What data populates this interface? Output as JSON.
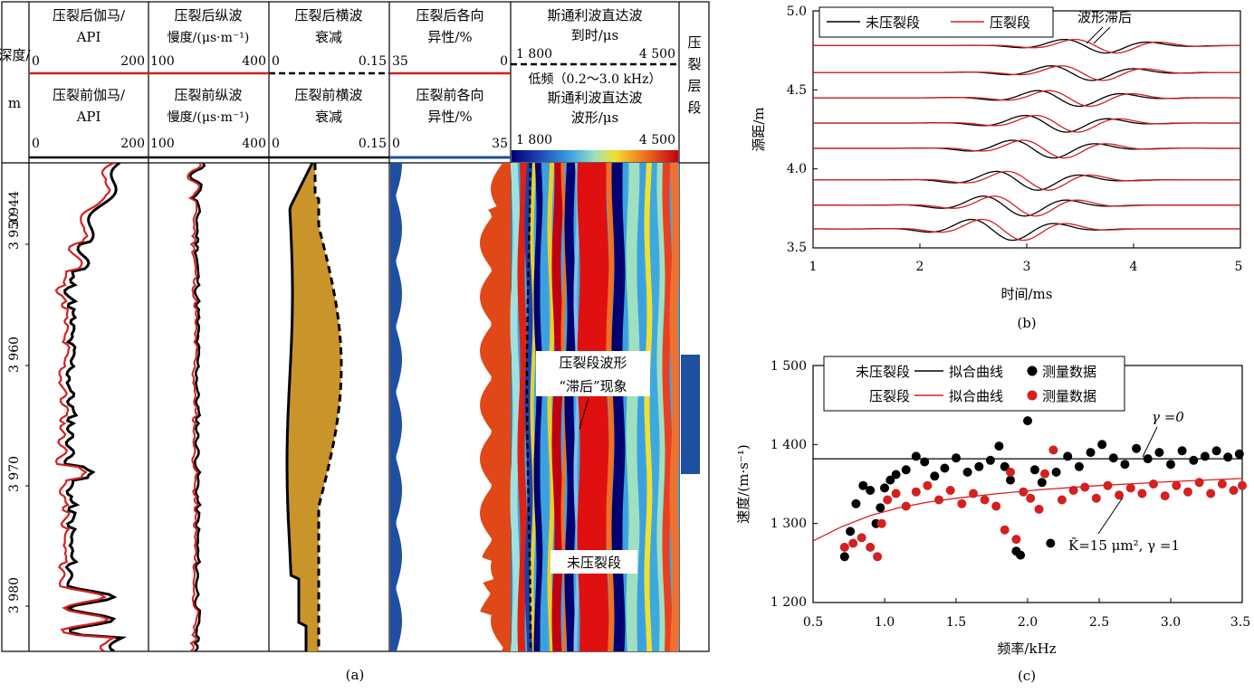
{
  "panel_a": {
    "caption": "(a)",
    "depth_header": [
      "深度/",
      "m"
    ],
    "track1": {
      "after_title": [
        "压裂后伽马/",
        "API"
      ],
      "after_scale": [
        "0",
        "200"
      ],
      "before_title": [
        "压裂前伽马/",
        "API"
      ],
      "before_scale": [
        "0",
        "200"
      ]
    },
    "track2": {
      "after_title": [
        "压裂后纵波",
        "慢度/(μs·m⁻¹)"
      ],
      "after_scale": [
        "100",
        "400"
      ],
      "before_title": [
        "压裂前纵波",
        "慢度/(μs·m⁻¹)"
      ],
      "before_scale": [
        "100",
        "400"
      ]
    },
    "track3": {
      "after_title": [
        "压裂后横波",
        "衰减"
      ],
      "after_scale": [
        "0",
        "0.15"
      ],
      "before_title": [
        "压裂前横波",
        "衰减"
      ],
      "before_scale": [
        "0",
        "0.15"
      ]
    },
    "track4": {
      "after_title": [
        "压裂后各向",
        "异性/%"
      ],
      "after_scale": [
        "35",
        "0"
      ],
      "before_title": [
        "压裂前各向",
        "异性/%"
      ],
      "before_scale": [
        "0",
        "35"
      ]
    },
    "track5": {
      "after_title": [
        "斯通利波直达波",
        "到时/μs"
      ],
      "after_scale": [
        "1 800",
        "4 500"
      ],
      "before_title": [
        "低频（0.2～3.0 kHz）",
        "斯通利波直达波",
        "波形/μs"
      ],
      "before_scale": [
        "1 800",
        "4 500"
      ],
      "annot_frac": [
        "压裂段波形",
        "“滞后”现象"
      ],
      "annot_unfrac": "未压裂段"
    },
    "track6_title": [
      "压",
      "裂",
      "层",
      "段"
    ],
    "depth_ticks": [
      "3 944",
      "3 950",
      "3 960",
      "3 970",
      "3 980"
    ]
  },
  "panel_b": {
    "caption": "(b)",
    "legend": [
      "未压裂段",
      "压裂段"
    ],
    "annotation": "波形滞后",
    "xlabel": "时间/ms",
    "ylabel": "源距/m",
    "x_ticks": [
      "1",
      "2",
      "3",
      "4",
      "5"
    ],
    "y_ticks": [
      "3.5",
      "4.0",
      "4.5",
      "5.0"
    ]
  },
  "panel_c": {
    "caption": "(c)",
    "legend": [
      {
        "name": "未压裂段",
        "line": "拟合曲线",
        "dots": "测量数据"
      },
      {
        "name": "压裂段",
        "line": "拟合曲线",
        "dots": "测量数据"
      }
    ],
    "annot_gamma0": "γ =0",
    "annot_k": "K̄=15 μm², γ =1",
    "xlabel": "频率/kHz",
    "ylabel": "速度/(m·s⁻¹)",
    "x_ticks": [
      "0.5",
      "1.0",
      "1.5",
      "2.0",
      "2.5",
      "3.0",
      "3.5"
    ],
    "y_ticks": [
      "1 200",
      "1 300",
      "1 400",
      "1 500"
    ]
  },
  "colors": {
    "unfractured": "#000000",
    "fractured": "#d42020",
    "fill_attenuation": "#c9952b",
    "anisotropy_before": "#1f4fa0",
    "anisotropy_after": "#e04818",
    "frac_zone": "#1f4fa0"
  },
  "chart_data": [
    {
      "type": "line",
      "title": "",
      "xlabel": "时间/ms",
      "ylabel": "源距/m",
      "xlim": [
        1,
        5
      ],
      "ylim": [
        3.5,
        5.0
      ],
      "offsets_m": [
        3.62,
        3.77,
        3.93,
        4.13,
        4.29,
        4.45,
        4.61,
        4.78
      ],
      "series": [
        {
          "name": "未压裂段",
          "arrival_ms_at_3_62m": 2.75,
          "moveout_ms_per_m": 0.75
        },
        {
          "name": "压裂段",
          "arrival_ms_at_3_62m": 2.85,
          "moveout_ms_per_m": 0.75
        }
      ]
    },
    {
      "type": "scatter",
      "title": "",
      "xlabel": "频率/kHz",
      "ylabel": "速度/(m·s⁻¹)",
      "xlim": [
        0.5,
        3.5
      ],
      "ylim": [
        1200,
        1500
      ],
      "series": [
        {
          "name": "未压裂段 拟合曲线",
          "kind": "line",
          "x": [
            0.5,
            3.5
          ],
          "y": [
            1382,
            1382
          ]
        },
        {
          "name": "压裂段 拟合曲线",
          "kind": "line",
          "x": [
            0.5,
            0.7,
            0.9,
            1.1,
            1.3,
            1.5,
            1.8,
            2.1,
            2.5,
            3.0,
            3.5
          ],
          "y": [
            1278,
            1296,
            1310,
            1320,
            1327,
            1332,
            1338,
            1343,
            1348,
            1353,
            1357
          ]
        },
        {
          "name": "未压裂段 测量数据",
          "kind": "dots",
          "x": [
            0.72,
            0.76,
            0.8,
            0.85,
            0.9,
            0.94,
            0.97,
            1.0,
            1.04,
            1.08,
            1.15,
            1.22,
            1.28,
            1.35,
            1.42,
            1.5,
            1.58,
            1.66,
            1.74,
            1.8,
            1.84,
            1.88,
            1.92,
            1.95,
            2.0,
            2.05,
            2.1,
            2.16,
            2.2,
            2.28,
            2.36,
            2.44,
            2.52,
            2.6,
            2.68,
            2.76,
            2.84,
            2.92,
            3.0,
            3.08,
            3.16,
            3.24,
            3.32,
            3.4,
            3.48
          ],
          "y": [
            1258,
            1290,
            1325,
            1348,
            1342,
            1300,
            1320,
            1345,
            1355,
            1362,
            1368,
            1385,
            1378,
            1360,
            1370,
            1383,
            1365,
            1372,
            1380,
            1398,
            1372,
            1355,
            1265,
            1260,
            1430,
            1368,
            1352,
            1275,
            1365,
            1385,
            1372,
            1390,
            1400,
            1383,
            1375,
            1395,
            1382,
            1390,
            1375,
            1392,
            1380,
            1385,
            1392,
            1384,
            1388
          ]
        },
        {
          "name": "压裂段 测量数据",
          "kind": "dots",
          "x": [
            0.72,
            0.78,
            0.84,
            0.9,
            0.95,
            0.98,
            1.02,
            1.08,
            1.15,
            1.22,
            1.3,
            1.38,
            1.46,
            1.54,
            1.62,
            1.7,
            1.78,
            1.84,
            1.88,
            1.92,
            1.97,
            2.02,
            2.08,
            2.12,
            2.18,
            2.24,
            2.32,
            2.4,
            2.48,
            2.56,
            2.64,
            2.72,
            2.8,
            2.88,
            2.96,
            3.04,
            3.12,
            3.2,
            3.28,
            3.36,
            3.44,
            3.5
          ],
          "y": [
            1270,
            1275,
            1282,
            1270,
            1258,
            1300,
            1330,
            1338,
            1322,
            1340,
            1348,
            1330,
            1342,
            1325,
            1338,
            1330,
            1322,
            1292,
            1365,
            1280,
            1340,
            1332,
            1318,
            1363,
            1393,
            1330,
            1342,
            1346,
            1332,
            1348,
            1336,
            1345,
            1338,
            1350,
            1335,
            1348,
            1340,
            1352,
            1338,
            1350,
            1342,
            1348
          ]
        }
      ]
    }
  ]
}
